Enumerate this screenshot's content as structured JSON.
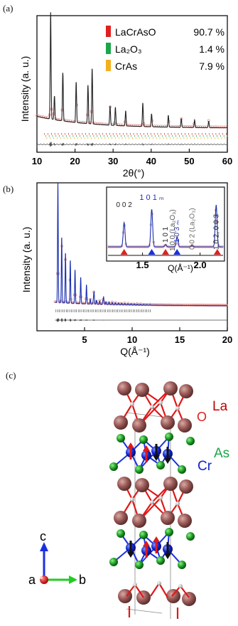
{
  "figure": {
    "panel_a": "(a)",
    "panel_b": "(b)",
    "panel_c": "(c)"
  },
  "chart_data": [
    {
      "type": "line",
      "panel": "(a)",
      "xlabel": "2θ(°)",
      "ylabel": "Intensity (a. u.)",
      "xlim": [
        10,
        60
      ],
      "xticks": [
        "10",
        "20",
        "30",
        "40",
        "50",
        "60"
      ],
      "legend": [
        {
          "name": "LaCrAsO",
          "value": "90.7 %",
          "color": "#e02020"
        },
        {
          "name": "La₂O₃",
          "value": "1.4 %",
          "color": "#1aa64a"
        },
        {
          "name": "CrAs",
          "value": "7.9 %",
          "color": "#f2b01e"
        }
      ],
      "peaks": [
        {
          "x": 13.6,
          "y": 1.0
        },
        {
          "x": 14.6,
          "y": 0.22
        },
        {
          "x": 16.8,
          "y": 0.45
        },
        {
          "x": 20.3,
          "y": 0.38
        },
        {
          "x": 23.4,
          "y": 0.36
        },
        {
          "x": 24.5,
          "y": 0.52
        },
        {
          "x": 29.2,
          "y": 0.18
        },
        {
          "x": 30.6,
          "y": 0.17
        },
        {
          "x": 33.3,
          "y": 0.14
        },
        {
          "x": 37.8,
          "y": 0.22
        },
        {
          "x": 40.1,
          "y": 0.12
        },
        {
          "x": 44.5,
          "y": 0.11
        },
        {
          "x": 47.9,
          "y": 0.08
        },
        {
          "x": 51.4,
          "y": 0.07
        },
        {
          "x": 55.1,
          "y": 0.06
        }
      ]
    },
    {
      "type": "line",
      "panel": "(b)",
      "xlabel": "Q(Å⁻¹)",
      "ylabel": "Intensity (a. u.)",
      "xlim": [
        0,
        20
      ],
      "xticks": [
        "5",
        "10",
        "15",
        "20"
      ],
      "peaks": [
        {
          "x": 2.2,
          "y": 1.0
        },
        {
          "x": 2.6,
          "y": 0.55
        },
        {
          "x": 3.0,
          "y": 0.42
        },
        {
          "x": 3.5,
          "y": 0.36
        },
        {
          "x": 4.0,
          "y": 0.28
        },
        {
          "x": 4.6,
          "y": 0.22
        },
        {
          "x": 5.2,
          "y": 0.16
        },
        {
          "x": 6.0,
          "y": 0.1
        },
        {
          "x": 7.0,
          "y": 0.06
        }
      ],
      "inset": {
        "xlabel": "Q(Å⁻¹)",
        "xlim": [
          1.2,
          2.2
        ],
        "xticks": [
          "1.5",
          "2.0"
        ],
        "peaks": [
          {
            "x": 1.34,
            "y": 0.55,
            "label": "0 0 2",
            "color": "#222222"
          },
          {
            "x": 1.58,
            "y": 0.85,
            "label": "1 0 1 ₘ",
            "color": "#2233bb"
          },
          {
            "x": 1.7,
            "y": 0.05,
            "label": "1 0 1",
            "color": "#222222"
          },
          {
            "x": 1.8,
            "y": 0.22,
            "label": "1 0 3 ₘ",
            "color": "#2233bb"
          },
          {
            "x": 1.93,
            "y": 0.04,
            "label": "0 0 2 (La₂O₃)",
            "color": "#666666"
          },
          {
            "x": 2.14,
            "y": 0.95,
            "label": "1 0 2, 0 0 3",
            "color": "#222222"
          }
        ],
        "extra_label": "1 0 0 (La₂O₃)"
      }
    }
  ],
  "crystal": {
    "labels": {
      "la": "La",
      "o": "O",
      "as": "As",
      "cr": "Cr"
    },
    "axes": {
      "c": "c",
      "a": "a",
      "b": "b"
    }
  }
}
